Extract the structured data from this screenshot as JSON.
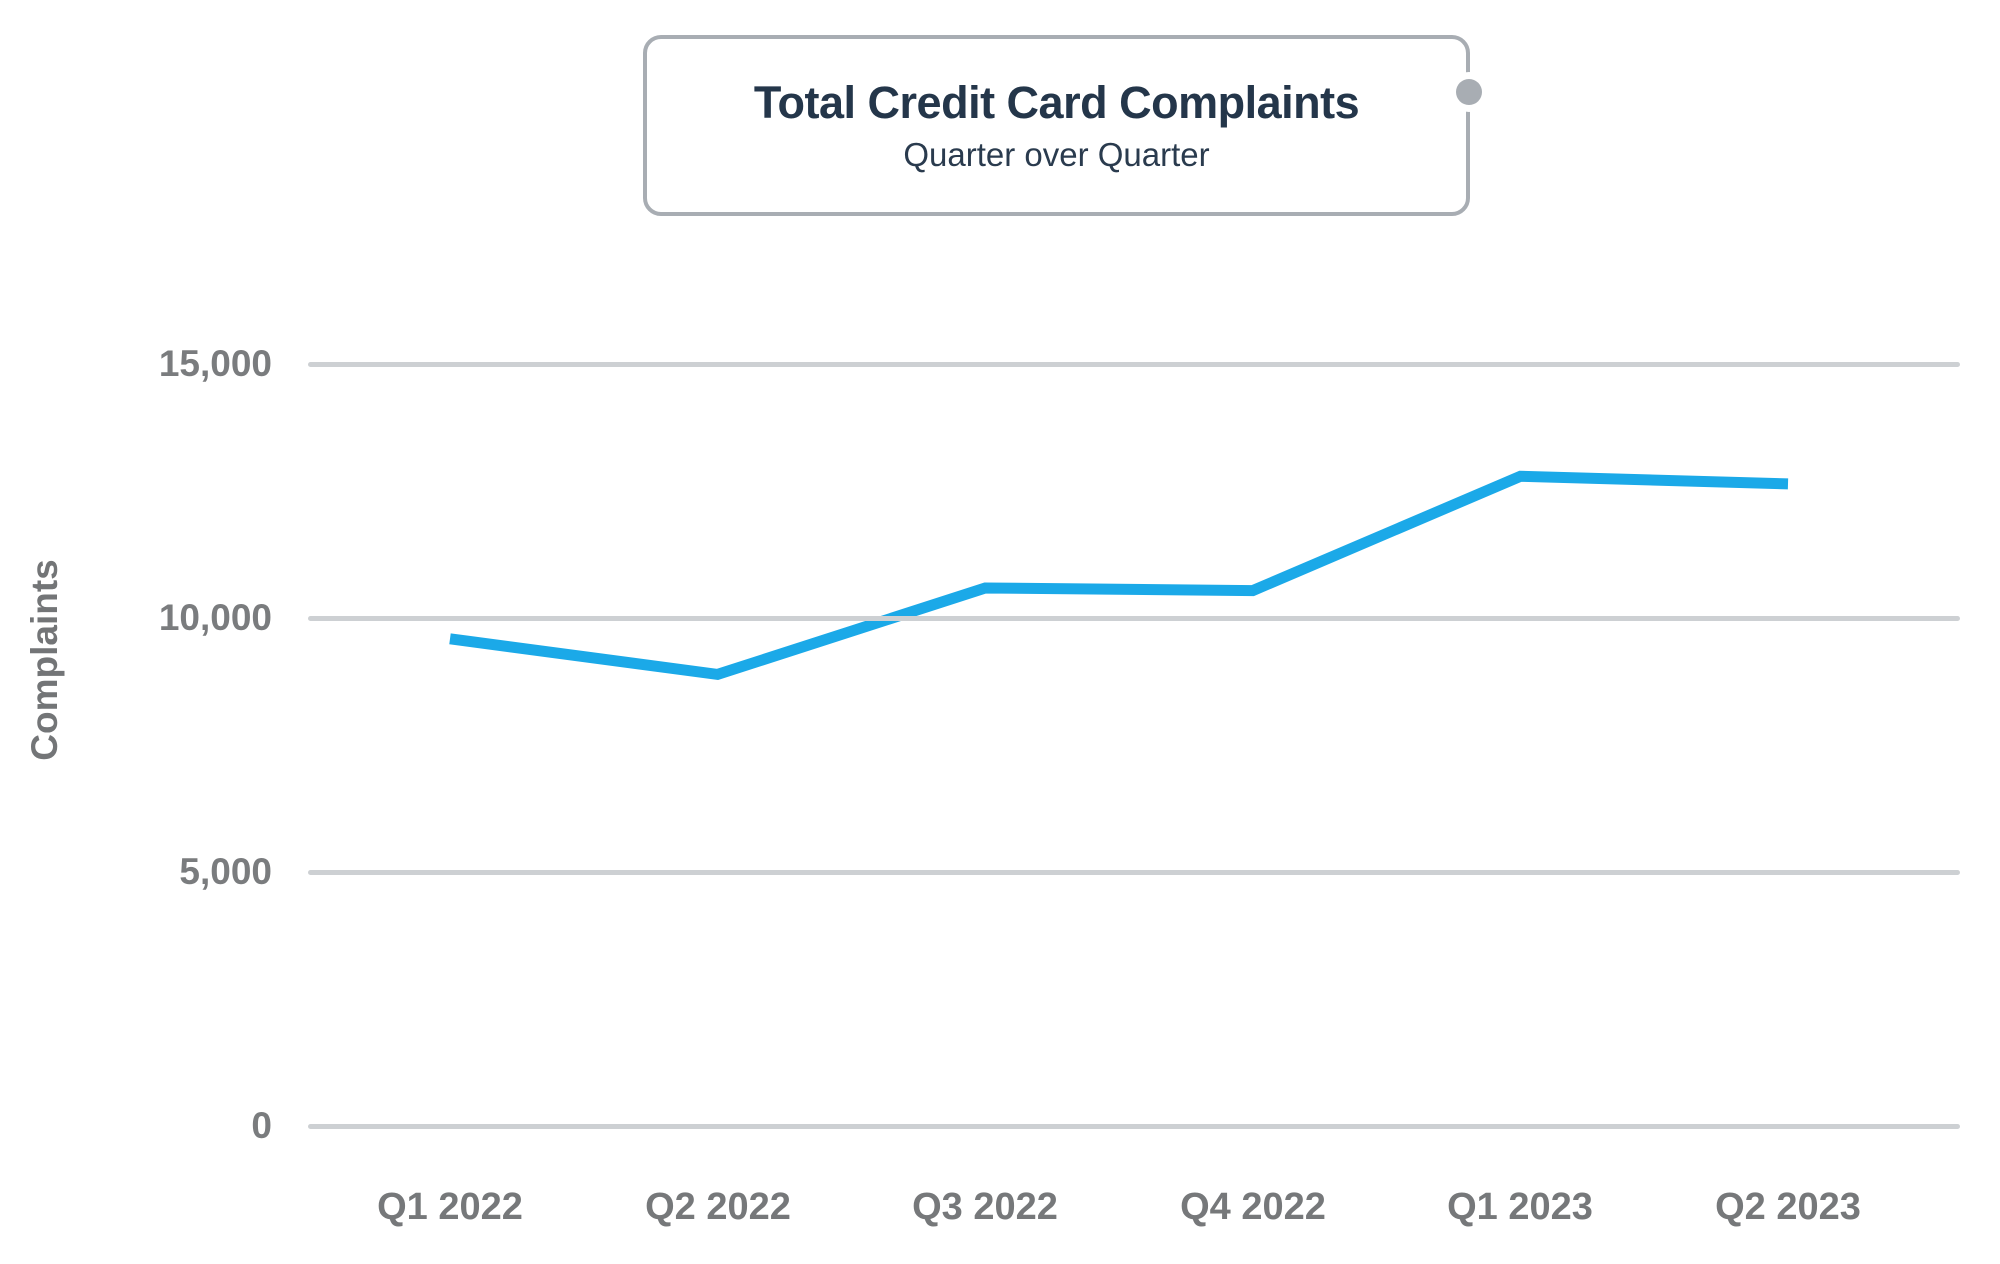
{
  "title_card": {
    "title": "Total Credit Card Complaints",
    "subtitle": "Quarter over Quarter"
  },
  "chart_data": {
    "type": "line",
    "title": "Total Credit Card Complaints",
    "subtitle": "Quarter over Quarter",
    "categories": [
      "Q1 2022",
      "Q2 2022",
      "Q3 2022",
      "Q4 2022",
      "Q1 2023",
      "Q2 2023"
    ],
    "series": [
      {
        "name": "Total Credit Card Complaints",
        "values": [
          9600,
          8900,
          10600,
          10550,
          12800,
          12650
        ]
      }
    ],
    "xlabel": "",
    "ylabel": "Complaints",
    "ylim": [
      0,
      15000
    ],
    "yticks": [
      15000,
      10000,
      5000,
      0
    ],
    "ytick_labels": [
      "15,000",
      "10,000",
      "5,000",
      "0"
    ],
    "grid": "horizontal",
    "legend": "none",
    "line_color": "#1ba9e8",
    "gridline_color": "#cdd0d3",
    "axis_text_color": "#7a7c7e",
    "title_color": "#24364a",
    "card_border_color": "#a8adb3"
  }
}
